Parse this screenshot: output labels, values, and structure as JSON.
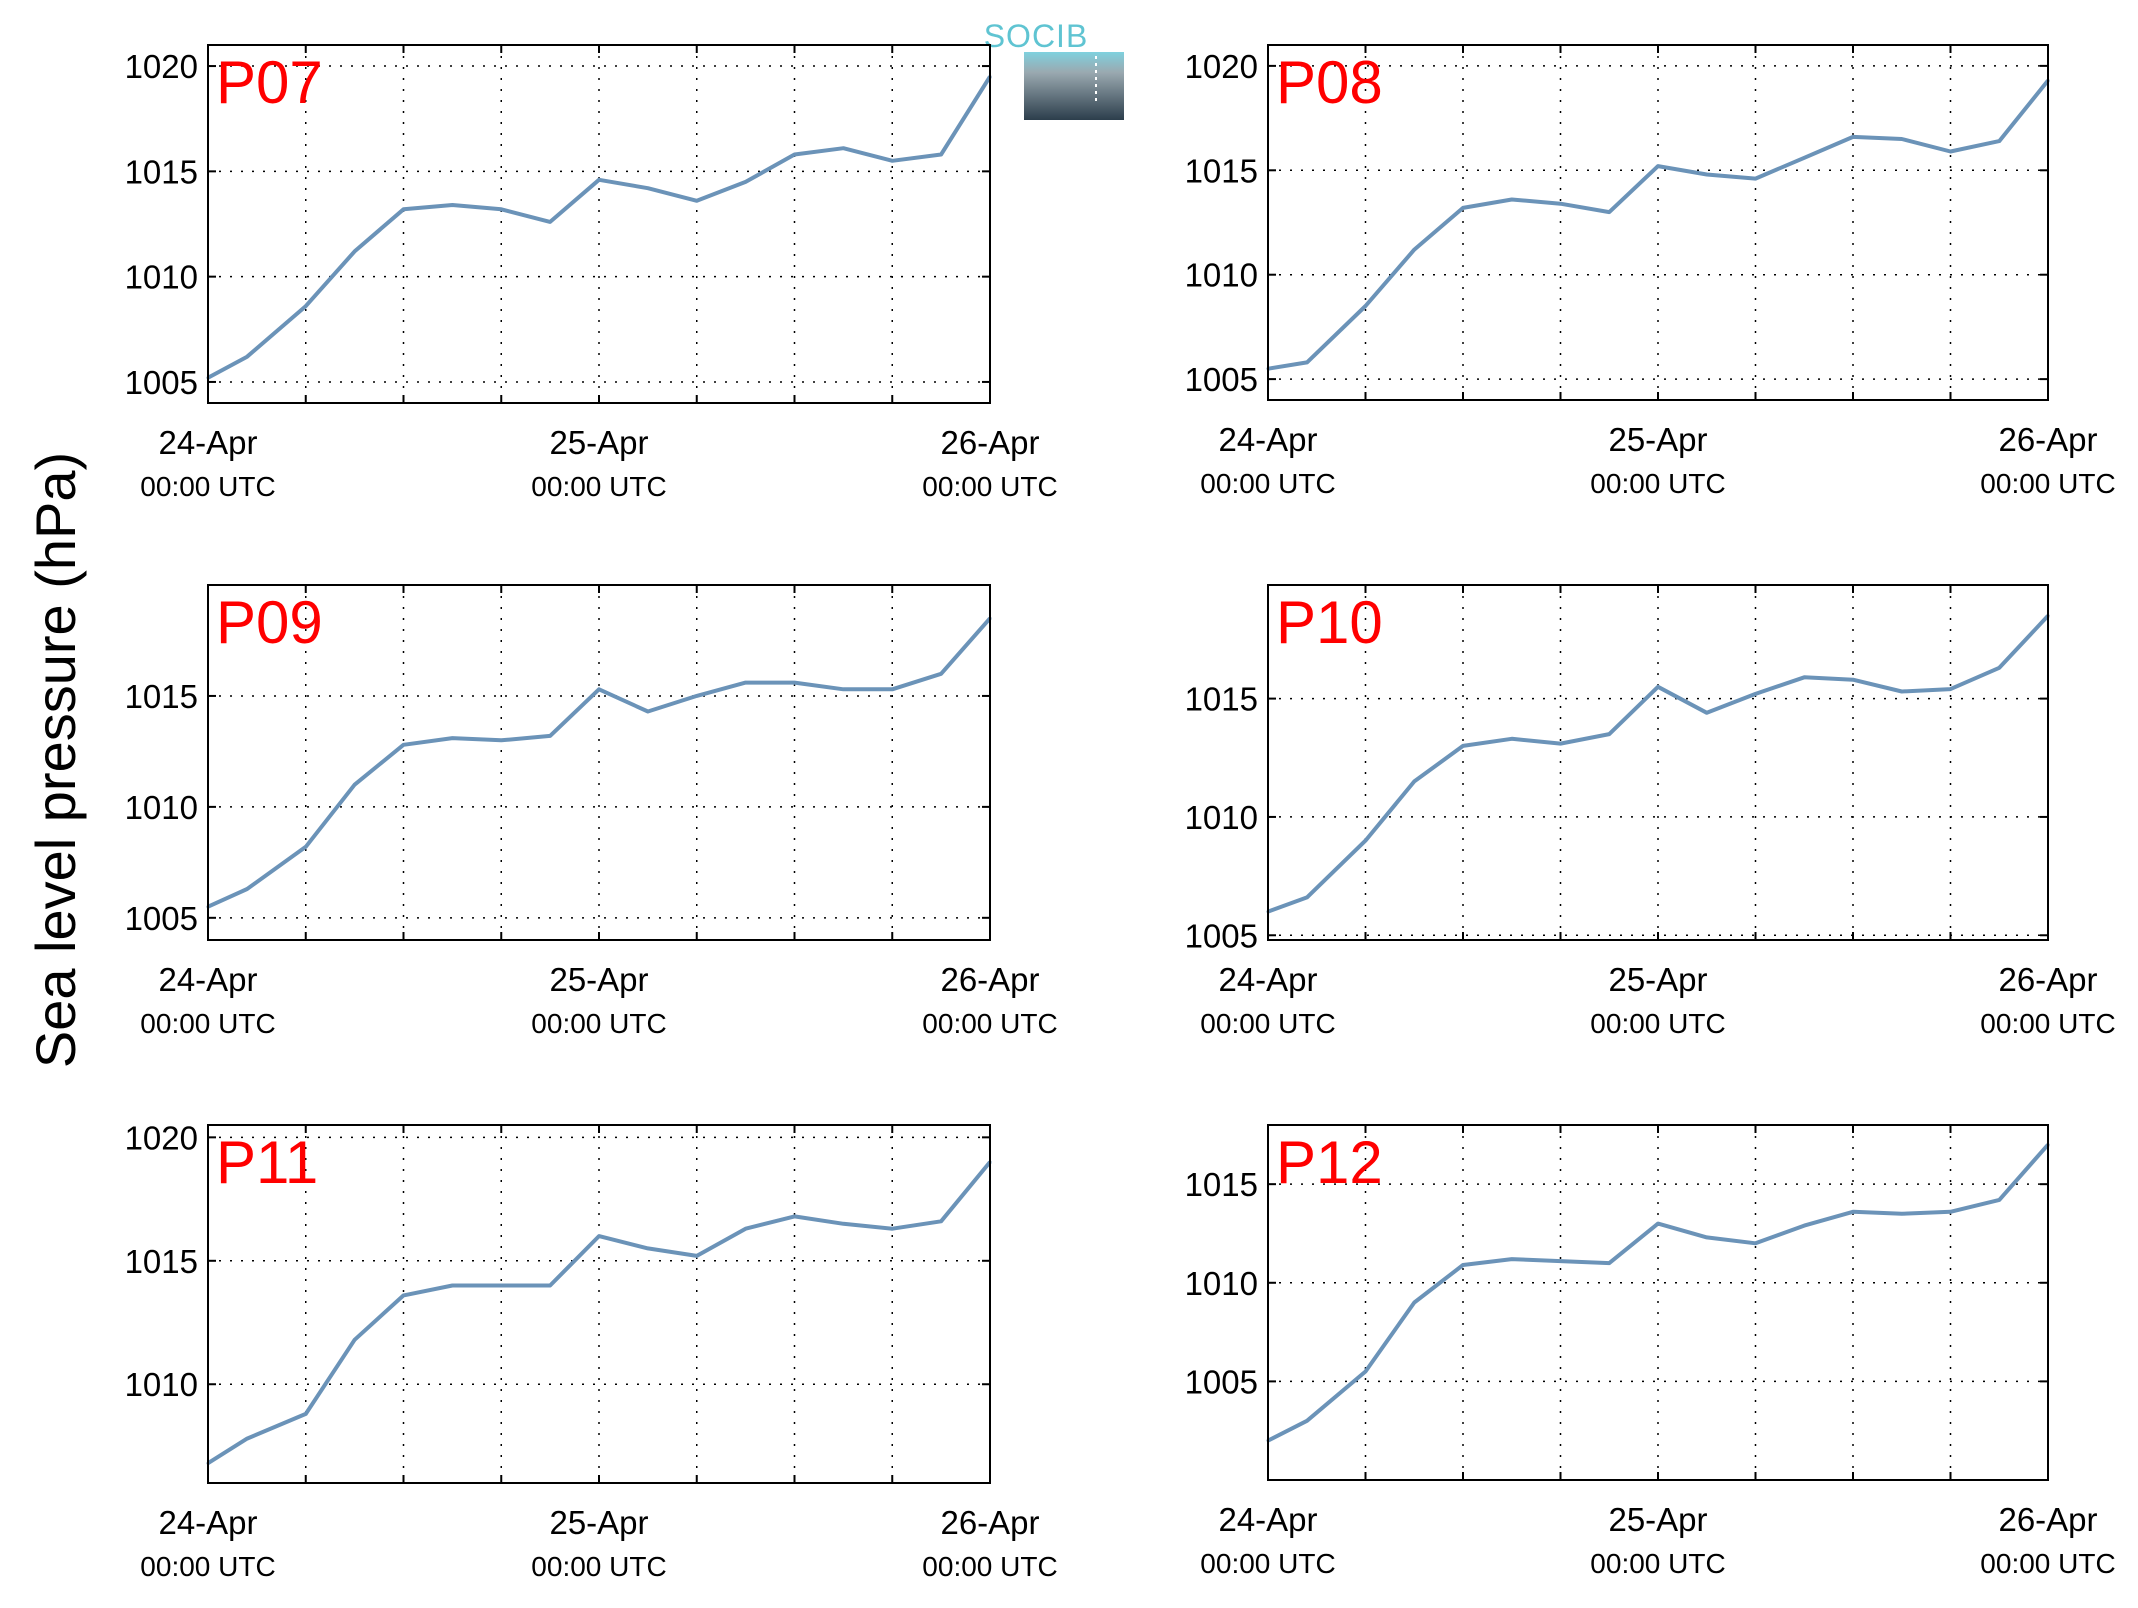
{
  "figure": {
    "ylabel": "Sea level pressure (hPa)",
    "logo_text": "SOCIB"
  },
  "chart_data": [
    {
      "type": "line",
      "panel": "P07",
      "x_ticks": [
        "24-Apr",
        "25-Apr",
        "26-Apr"
      ],
      "x_ticks_sub": [
        "00:00 UTC",
        "00:00 UTC",
        "00:00 UTC"
      ],
      "x": [
        0,
        0.1,
        0.25,
        0.375,
        0.5,
        0.625,
        0.75,
        0.875,
        1.0,
        1.125,
        1.25,
        1.375,
        1.5,
        1.625,
        1.75,
        1.875,
        2.0
      ],
      "x_range": [
        0,
        2
      ],
      "ylim": [
        1004,
        1021
      ],
      "y_ticks": [
        1005,
        1010,
        1015,
        1020
      ],
      "grid": true,
      "color": "#6b93b8",
      "series": [
        {
          "values": [
            1005.2,
            1006.2,
            1008.6,
            1011.2,
            1013.2,
            1013.4,
            1013.2,
            1012.6,
            1014.6,
            1014.2,
            1013.6,
            1014.5,
            1015.8,
            1016.1,
            1015.5,
            1015.8,
            1019.5
          ]
        }
      ]
    },
    {
      "type": "line",
      "panel": "P08",
      "x_ticks": [
        "24-Apr",
        "25-Apr",
        "26-Apr"
      ],
      "x_ticks_sub": [
        "00:00 UTC",
        "00:00 UTC",
        "00:00 UTC"
      ],
      "x": [
        0,
        0.1,
        0.25,
        0.375,
        0.5,
        0.625,
        0.75,
        0.875,
        1.0,
        1.125,
        1.25,
        1.375,
        1.5,
        1.625,
        1.75,
        1.875,
        2.0
      ],
      "x_range": [
        0,
        2
      ],
      "ylim": [
        1004,
        1021
      ],
      "y_ticks": [
        1005,
        1010,
        1015,
        1020
      ],
      "grid": true,
      "color": "#6b93b8",
      "series": [
        {
          "values": [
            1005.5,
            1005.8,
            1008.5,
            1011.2,
            1013.2,
            1013.6,
            1013.4,
            1013.0,
            1015.2,
            1014.8,
            1014.6,
            1015.6,
            1016.6,
            1016.5,
            1015.9,
            1016.4,
            1019.3
          ]
        }
      ]
    },
    {
      "type": "line",
      "panel": "P09",
      "x_ticks": [
        "24-Apr",
        "25-Apr",
        "26-Apr"
      ],
      "x_ticks_sub": [
        "00:00 UTC",
        "00:00 UTC",
        "00:00 UTC"
      ],
      "x": [
        0,
        0.1,
        0.25,
        0.375,
        0.5,
        0.625,
        0.75,
        0.875,
        1.0,
        1.125,
        1.25,
        1.375,
        1.5,
        1.625,
        1.75,
        1.875,
        2.0
      ],
      "x_range": [
        0,
        2
      ],
      "ylim": [
        1004,
        1020
      ],
      "y_ticks": [
        1005,
        1010,
        1015
      ],
      "grid": true,
      "color": "#6b93b8",
      "series": [
        {
          "values": [
            1005.5,
            1006.3,
            1008.2,
            1011.0,
            1012.8,
            1013.1,
            1013.0,
            1013.2,
            1015.3,
            1014.3,
            1015.0,
            1015.6,
            1015.6,
            1015.3,
            1015.3,
            1016.0,
            1018.5
          ]
        }
      ]
    },
    {
      "type": "line",
      "panel": "P10",
      "x_ticks": [
        "24-Apr",
        "25-Apr",
        "26-Apr"
      ],
      "x_ticks_sub": [
        "00:00 UTC",
        "00:00 UTC",
        "00:00 UTC"
      ],
      "x": [
        0,
        0.1,
        0.25,
        0.375,
        0.5,
        0.625,
        0.75,
        0.875,
        1.0,
        1.125,
        1.25,
        1.375,
        1.5,
        1.625,
        1.75,
        1.875,
        2.0
      ],
      "x_range": [
        0,
        2
      ],
      "ylim": [
        1004.8,
        1019.8
      ],
      "y_ticks": [
        1005,
        1010,
        1015
      ],
      "grid": true,
      "color": "#6b93b8",
      "series": [
        {
          "values": [
            1006.0,
            1006.6,
            1009.0,
            1011.5,
            1013.0,
            1013.3,
            1013.1,
            1013.5,
            1015.5,
            1014.4,
            1015.2,
            1015.9,
            1015.8,
            1015.3,
            1015.4,
            1016.3,
            1018.5
          ]
        }
      ]
    },
    {
      "type": "line",
      "panel": "P11",
      "x_ticks": [
        "24-Apr",
        "25-Apr",
        "26-Apr"
      ],
      "x_ticks_sub": [
        "00:00 UTC",
        "00:00 UTC",
        "00:00 UTC"
      ],
      "x": [
        0,
        0.1,
        0.25,
        0.375,
        0.5,
        0.625,
        0.75,
        0.875,
        1.0,
        1.125,
        1.25,
        1.375,
        1.5,
        1.625,
        1.75,
        1.875,
        2.0
      ],
      "x_range": [
        0,
        2
      ],
      "ylim": [
        1006,
        1020.5
      ],
      "y_ticks": [
        1010,
        1015,
        1020
      ],
      "grid": true,
      "color": "#6b93b8",
      "series": [
        {
          "values": [
            1006.8,
            1007.8,
            1008.8,
            1011.8,
            1013.6,
            1014.0,
            1014.0,
            1014.0,
            1016.0,
            1015.5,
            1015.2,
            1016.3,
            1016.8,
            1016.5,
            1016.3,
            1016.6,
            1019.0
          ]
        }
      ]
    },
    {
      "type": "line",
      "panel": "P12",
      "x_ticks": [
        "24-Apr",
        "25-Apr",
        "26-Apr"
      ],
      "x_ticks_sub": [
        "00:00 UTC",
        "00:00 UTC",
        "00:00 UTC"
      ],
      "x": [
        0,
        0.1,
        0.25,
        0.375,
        0.5,
        0.625,
        0.75,
        0.875,
        1.0,
        1.125,
        1.25,
        1.375,
        1.5,
        1.625,
        1.75,
        1.875,
        2.0
      ],
      "x_range": [
        0,
        2
      ],
      "ylim": [
        1000,
        1018
      ],
      "y_ticks": [
        1005,
        1010,
        1015
      ],
      "grid": true,
      "color": "#6b93b8",
      "series": [
        {
          "values": [
            1002.0,
            1003.0,
            1005.5,
            1009.0,
            1010.9,
            1011.2,
            1011.1,
            1011.0,
            1013.0,
            1012.3,
            1012.0,
            1012.9,
            1013.6,
            1013.5,
            1013.6,
            1014.2,
            1017.0
          ]
        }
      ]
    }
  ]
}
